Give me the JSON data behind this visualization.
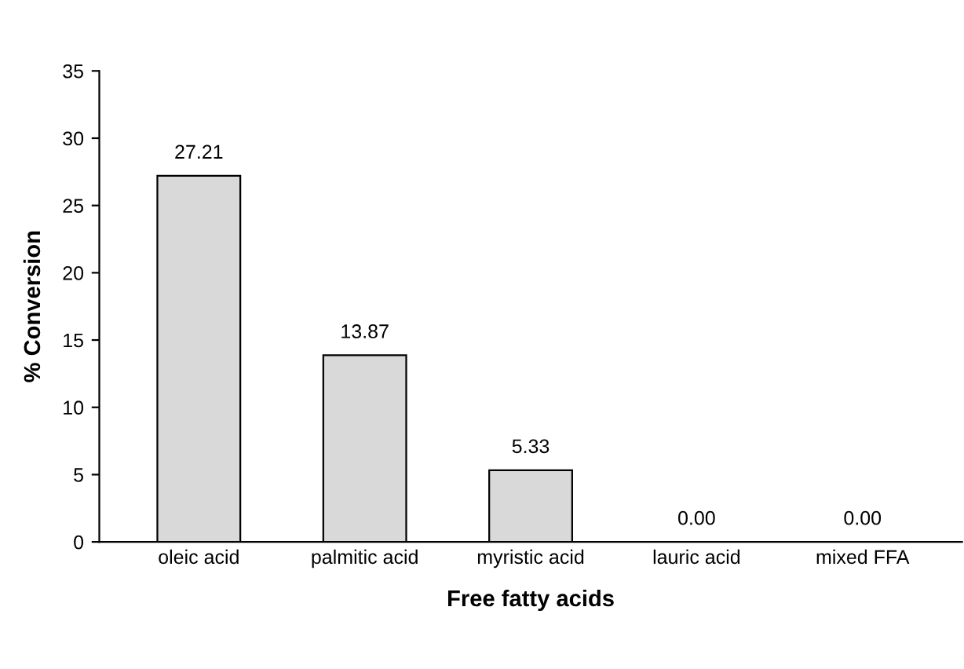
{
  "chart_data": {
    "type": "bar",
    "categories": [
      "oleic acid",
      "palmitic acid",
      "myristic acid",
      "lauric acid",
      "mixed FFA"
    ],
    "values": [
      27.21,
      13.87,
      5.33,
      0.0,
      0.0
    ],
    "value_labels": [
      "27.21",
      "13.87",
      "5.33",
      "0.00",
      "0.00"
    ],
    "color": "#d9d9d9",
    "xlabel": "Free fatty acids",
    "ylabel": "% Conversion",
    "ylim": [
      0,
      35
    ],
    "yticks": [
      0,
      5,
      10,
      15,
      20,
      25,
      30,
      35
    ],
    "grid": false,
    "legend": false
  }
}
